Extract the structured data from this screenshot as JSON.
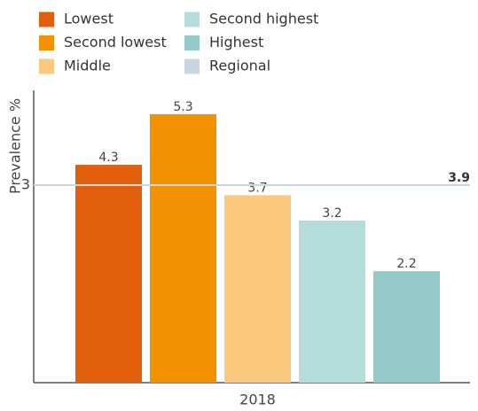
{
  "chart_data": {
    "type": "bar",
    "categories": [
      "2018"
    ],
    "y_label": "Prevalence %",
    "series": [
      {
        "name": "Lowest",
        "color": "#e05e0c",
        "values": [
          4.3
        ]
      },
      {
        "name": "Second lowest",
        "color": "#f39200",
        "values": [
          5.3
        ]
      },
      {
        "name": "Middle",
        "color": "#fbc97e",
        "values": [
          3.7
        ]
      },
      {
        "name": "Second highest",
        "color": "#b3dcdb",
        "values": [
          3.2
        ]
      },
      {
        "name": "Highest",
        "color": "#93c9c8",
        "values": [
          2.2
        ]
      }
    ],
    "reference": {
      "name": "Regional",
      "color": "#c9d6e0",
      "value": 3.9,
      "axis_label": "3"
    },
    "ylim": [
      0,
      5.77
    ],
    "yticks": []
  }
}
